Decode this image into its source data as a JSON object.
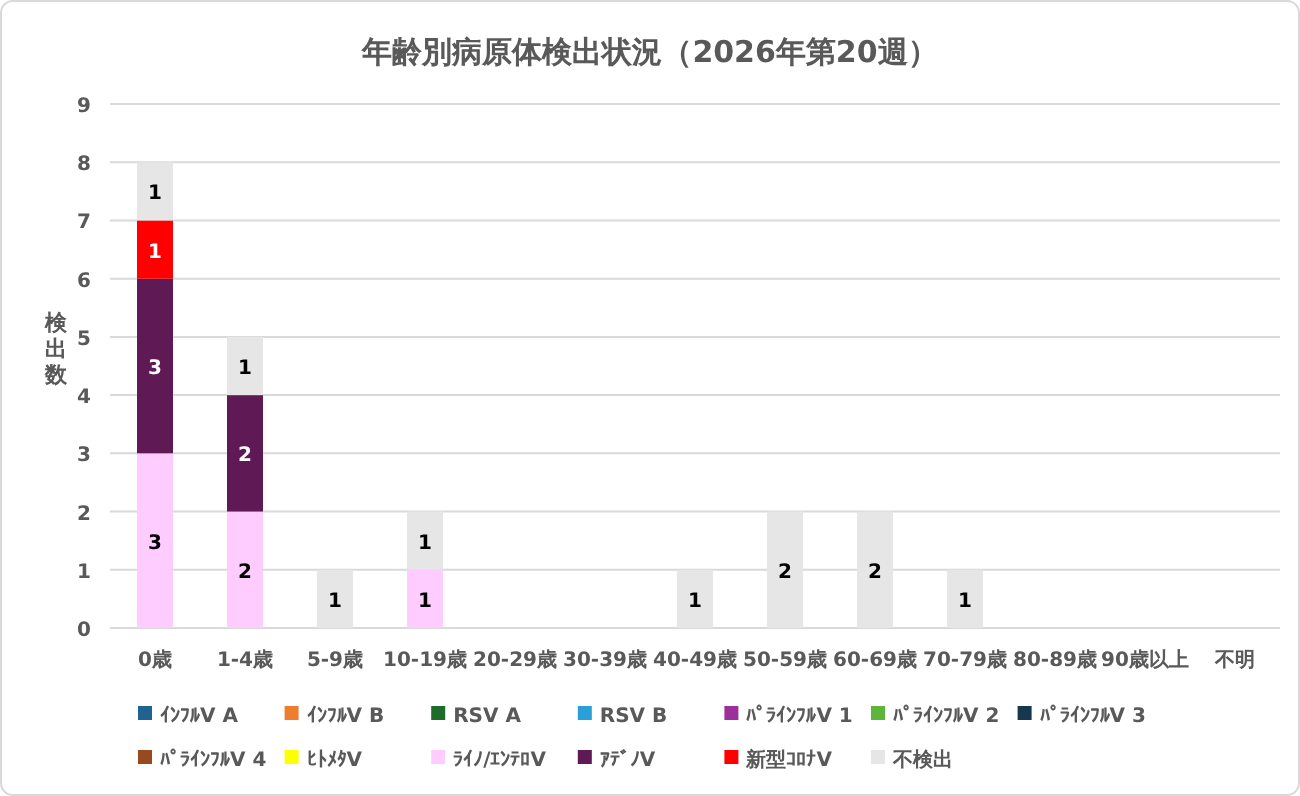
{
  "chart_data": {
    "type": "bar",
    "stacked": true,
    "title": "年齢別病原体検出状況（2026年第20週）",
    "ylabel": "検出数",
    "categories": [
      "0歳",
      "1-4歳",
      "5-9歳",
      "10-19歳",
      "20-29歳",
      "30-39歳",
      "40-49歳",
      "50-59歳",
      "60-69歳",
      "70-79歳",
      "80-89歳",
      "90歳以上",
      "不明"
    ],
    "ylim": [
      0,
      9
    ],
    "yticks": [
      0,
      1,
      2,
      3,
      4,
      5,
      6,
      7,
      8,
      9
    ],
    "grid": "y",
    "legend": "bottom",
    "data_labels": true,
    "series": [
      {
        "name": "ｲﾝﾌﾙV A",
        "color": "#1f6391",
        "values": [
          null,
          null,
          null,
          null,
          null,
          null,
          null,
          null,
          null,
          null,
          null,
          null,
          null
        ]
      },
      {
        "name": "ｲﾝﾌﾙV B",
        "color": "#ed7d31",
        "values": [
          null,
          null,
          null,
          null,
          null,
          null,
          null,
          null,
          null,
          null,
          null,
          null,
          null
        ]
      },
      {
        "name": "RSV A",
        "color": "#1e6b2a",
        "values": [
          null,
          null,
          null,
          null,
          null,
          null,
          null,
          null,
          null,
          null,
          null,
          null,
          null
        ]
      },
      {
        "name": "RSV B",
        "color": "#2a9fd8",
        "values": [
          null,
          null,
          null,
          null,
          null,
          null,
          null,
          null,
          null,
          null,
          null,
          null,
          null
        ]
      },
      {
        "name": "ﾊﾟﾗｲﾝﾌﾙV 1",
        "color": "#9b309b",
        "values": [
          null,
          null,
          null,
          null,
          null,
          null,
          null,
          null,
          null,
          null,
          null,
          null,
          null
        ]
      },
      {
        "name": "ﾊﾟﾗｲﾝﾌﾙV 2",
        "color": "#5db53b",
        "values": [
          null,
          null,
          null,
          null,
          null,
          null,
          null,
          null,
          null,
          null,
          null,
          null,
          null
        ]
      },
      {
        "name": "ﾊﾟﾗｲﾝﾌﾙV 3",
        "color": "#16384e",
        "values": [
          null,
          null,
          null,
          null,
          null,
          null,
          null,
          null,
          null,
          null,
          null,
          null,
          null
        ]
      },
      {
        "name": "ﾊﾟﾗｲﾝﾌﾙV 4",
        "color": "#974a1e",
        "values": [
          null,
          null,
          null,
          null,
          null,
          null,
          null,
          null,
          null,
          null,
          null,
          null,
          null
        ]
      },
      {
        "name": "ﾋﾄﾒﾀV",
        "color": "#ffff00",
        "values": [
          null,
          null,
          null,
          null,
          null,
          null,
          null,
          null,
          null,
          null,
          null,
          null,
          null
        ]
      },
      {
        "name": "ﾗｲﾉ/ｴﾝﾃﾛV",
        "color": "#ffccff",
        "values": [
          3,
          2,
          null,
          1,
          null,
          null,
          null,
          null,
          null,
          null,
          null,
          null,
          null
        ]
      },
      {
        "name": "ｱﾃﾞﾉV",
        "color": "#5f1a55",
        "values": [
          3,
          2,
          null,
          null,
          null,
          null,
          null,
          null,
          null,
          null,
          null,
          null,
          null
        ]
      },
      {
        "name": "新型ｺﾛﾅV",
        "color": "#ff0000",
        "values": [
          1,
          null,
          null,
          null,
          null,
          null,
          null,
          null,
          null,
          null,
          null,
          null,
          null
        ]
      },
      {
        "name": "不検出",
        "color": "#e6e6e6",
        "values": [
          1,
          1,
          1,
          1,
          null,
          null,
          1,
          2,
          2,
          1,
          null,
          null,
          null
        ]
      }
    ]
  }
}
